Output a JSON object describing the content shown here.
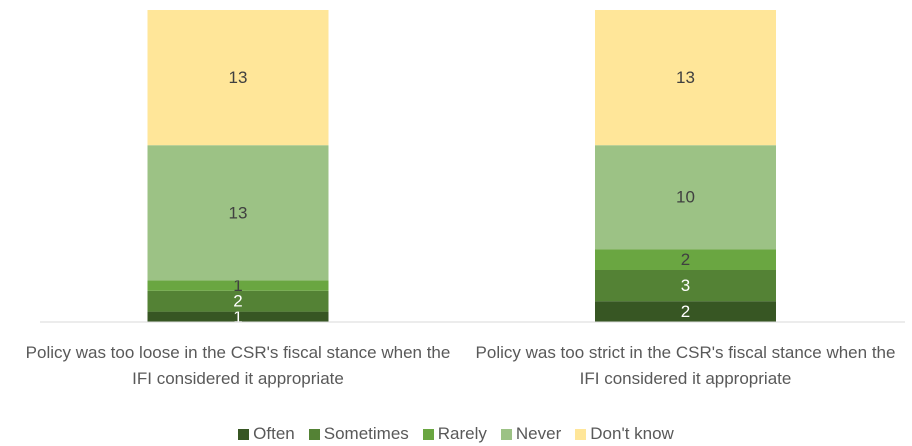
{
  "chart_data": {
    "type": "stacked_bar",
    "categories": [
      "Policy was too loose in the CSR's fiscal stance when the IFI considered it appropriate",
      "Policy was too strict in the CSR's fiscal stance when the IFI considered it appropriate"
    ],
    "series": [
      {
        "name": "Often",
        "color": "#375623",
        "values": [
          1,
          2
        ]
      },
      {
        "name": "Sometimes",
        "color": "#548235",
        "values": [
          2,
          3
        ]
      },
      {
        "name": "Rarely",
        "color": "#6aa641",
        "values": [
          1,
          2
        ]
      },
      {
        "name": "Never",
        "color": "#9cc285",
        "values": [
          13,
          10
        ]
      },
      {
        "name": "Don't know",
        "color": "#ffe699",
        "values": [
          13,
          13
        ]
      }
    ],
    "ylim": [
      0,
      30
    ],
    "legend": "bottom"
  }
}
